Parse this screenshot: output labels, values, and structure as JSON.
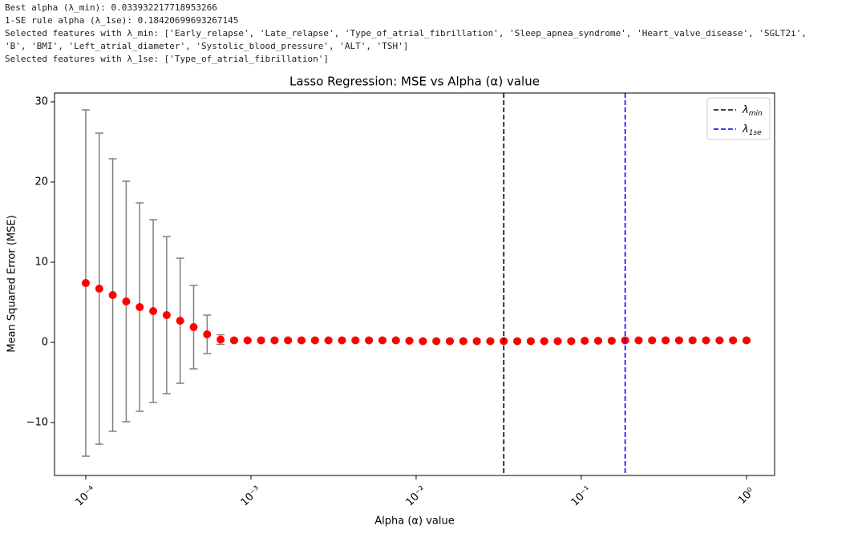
{
  "output_lines": [
    "Best alpha (λ_min): 0.033932217718953266",
    "1-SE rule alpha (λ_1se): 0.18420699693267145",
    "Selected features with λ_min: ['Early_relapse', 'Late_relapse', 'Type_of_atrial_fibrillation', 'Sleep_apnea_syndrome', 'Heart_valve_disease', 'SGLT2i',",
    "'B', 'BMI', 'Left_atrial_diameter', 'Systolic_blood_pressure', 'ALT', 'TSH']",
    "Selected features with λ_1se: ['Type_of_atrial_fibrillation']"
  ],
  "chart_data": {
    "type": "errorbar",
    "title": "Lasso Regression: MSE vs Alpha (α) value",
    "x_label": "Alpha (α) value",
    "y_label": "Mean Squared Error (MSE)",
    "x_scale": "log",
    "xlim": [
      6.47e-05,
      1.479
    ],
    "ylim": [
      -16.6,
      31.1
    ],
    "xticks": [
      {
        "value": 0.0001,
        "label": "10⁻⁴"
      },
      {
        "value": 0.001,
        "label": "10⁻³"
      },
      {
        "value": 0.01,
        "label": "10⁻²"
      },
      {
        "value": 0.1,
        "label": "10⁻¹"
      },
      {
        "value": 1,
        "label": "10⁰"
      }
    ],
    "yticks": [
      {
        "value": -10,
        "label": "−10"
      },
      0,
      10,
      20,
      30
    ],
    "legend": "upper right",
    "series": [
      {
        "color": "#ff0000",
        "error_color": "#808080",
        "x": [
          0.0001,
          0.00012068,
          0.00014563,
          0.00017575,
          0.0002121,
          0.00025595,
          0.00030888,
          0.00037276,
          0.00044984,
          0.00054287,
          0.00065513,
          0.0007906,
          0.0009541,
          0.0011514,
          0.0013895,
          0.0016768,
          0.0020236,
          0.0024421,
          0.0029471,
          0.0035565,
          0.0042919,
          0.0051795,
          0.0062506,
          0.0075431,
          0.009103,
          0.010985,
          0.013257,
          0.015999,
          0.019307,
          0.0233,
          0.028118,
          0.033932,
          0.040949,
          0.049417,
          0.059636,
          0.071969,
          0.086851,
          0.10481,
          0.12649,
          0.15264,
          0.18421,
          0.2223,
          0.26827,
          0.32375,
          0.39069,
          0.47149,
          0.56899,
          0.68665,
          0.82864,
          1
        ],
        "values": [
          7.4,
          6.7,
          5.9,
          5.1,
          4.4,
          3.9,
          3.4,
          2.7,
          1.9,
          1.0,
          0.35,
          0.25,
          0.25,
          0.25,
          0.25,
          0.25,
          0.25,
          0.25,
          0.25,
          0.25,
          0.25,
          0.25,
          0.25,
          0.25,
          0.2,
          0.15,
          0.15,
          0.15,
          0.15,
          0.15,
          0.15,
          0.15,
          0.15,
          0.15,
          0.15,
          0.15,
          0.15,
          0.2,
          0.2,
          0.2,
          0.25,
          0.25,
          0.25,
          0.25,
          0.25,
          0.25,
          0.25,
          0.25,
          0.25,
          0.25
        ],
        "errors": [
          21.6,
          19.4,
          17.0,
          15.0,
          13.0,
          11.4,
          9.8,
          7.8,
          5.2,
          2.4,
          0.6,
          0.15,
          0.15,
          0.15,
          0.15,
          0.15,
          0.15,
          0.15,
          0.15,
          0.15,
          0.15,
          0.15,
          0.15,
          0.15,
          0.15,
          0.15,
          0.15,
          0.15,
          0.15,
          0.15,
          0.15,
          0.15,
          0.15,
          0.15,
          0.15,
          0.15,
          0.15,
          0.15,
          0.15,
          0.15,
          0.15,
          0.15,
          0.15,
          0.15,
          0.15,
          0.15,
          0.15,
          0.15,
          0.15,
          0.15
        ]
      }
    ],
    "reference_lines": [
      {
        "symbol": "λ",
        "subscript": "min",
        "value": 0.033932217718953266,
        "color": "#000000"
      },
      {
        "symbol": "λ",
        "subscript": "1se",
        "value": 0.18420699693267145,
        "color": "#0000ff"
      }
    ]
  }
}
